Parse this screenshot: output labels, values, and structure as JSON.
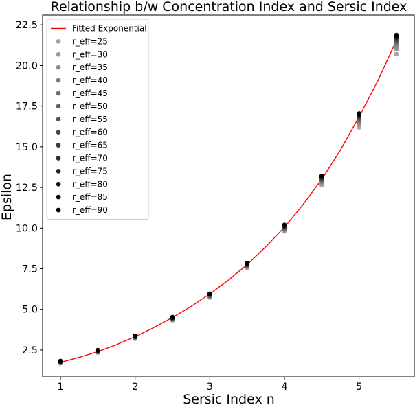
{
  "chart_data": {
    "type": "scatter",
    "title": "Relationship b/w Concentration Index and Sersic Index",
    "xlabel": "Sersic Index n",
    "ylabel": "Epsilon",
    "xlim": [
      0.76,
      5.74
    ],
    "ylim": [
      0.85,
      23.1
    ],
    "xticks": [
      1,
      2,
      3,
      4,
      5
    ],
    "xtick_labels": [
      "1",
      "2",
      "3",
      "4",
      "5"
    ],
    "yticks": [
      2.5,
      5.0,
      7.5,
      10.0,
      12.5,
      15.0,
      17.5,
      20.0,
      22.5
    ],
    "ytick_labels": [
      "2.5",
      "5.0",
      "7.5",
      "10.0",
      "12.5",
      "15.0",
      "17.5",
      "20.0",
      "22.5"
    ],
    "grid": false,
    "legend_position": "top-left",
    "x": [
      1,
      1.5,
      2,
      2.5,
      3,
      3.5,
      4,
      4.5,
      5,
      5.5
    ],
    "fit_line": {
      "name": "Fitted Exponential",
      "color": "#ff0000",
      "x": [
        1,
        1.25,
        1.5,
        1.75,
        2,
        2.25,
        2.5,
        2.75,
        3,
        3.25,
        3.5,
        3.75,
        4,
        4.25,
        4.5,
        4.75,
        5,
        5.25,
        5.5
      ],
      "y": [
        1.74,
        2.05,
        2.4,
        2.83,
        3.32,
        3.88,
        4.5,
        5.18,
        5.95,
        6.8,
        7.75,
        8.85,
        10.05,
        11.45,
        13.0,
        14.8,
        16.85,
        19.05,
        21.55
      ]
    },
    "series": [
      {
        "name": "r_eff=25",
        "color": "#a6a6a6",
        "values": [
          1.68,
          2.34,
          3.2,
          4.33,
          5.72,
          7.56,
          9.8,
          12.65,
          16.2,
          20.7
        ]
      },
      {
        "name": "r_eff=30",
        "color": "#9a9a9a",
        "values": [
          1.7,
          2.36,
          3.22,
          4.36,
          5.76,
          7.6,
          9.86,
          12.75,
          16.35,
          21.0
        ]
      },
      {
        "name": "r_eff=35",
        "color": "#8c8c8c",
        "values": [
          1.71,
          2.37,
          3.24,
          4.38,
          5.79,
          7.63,
          9.9,
          12.82,
          16.46,
          21.15
        ]
      },
      {
        "name": "r_eff=40",
        "color": "#7e7e7e",
        "values": [
          1.72,
          2.39,
          3.26,
          4.4,
          5.82,
          7.66,
          9.94,
          12.88,
          16.56,
          21.3
        ]
      },
      {
        "name": "r_eff=45",
        "color": "#707070",
        "values": [
          1.73,
          2.4,
          3.27,
          4.42,
          5.84,
          7.69,
          9.98,
          12.93,
          16.64,
          21.4
        ]
      },
      {
        "name": "r_eff=50",
        "color": "#626262",
        "values": [
          1.74,
          2.41,
          3.29,
          4.44,
          5.86,
          7.71,
          10.01,
          12.98,
          16.71,
          21.48
        ]
      },
      {
        "name": "r_eff=55",
        "color": "#545454",
        "values": [
          1.75,
          2.42,
          3.3,
          4.45,
          5.88,
          7.73,
          10.04,
          13.02,
          16.77,
          21.55
        ]
      },
      {
        "name": "r_eff=60",
        "color": "#474747",
        "values": [
          1.76,
          2.43,
          3.31,
          4.46,
          5.9,
          7.75,
          10.07,
          13.06,
          16.83,
          21.61
        ]
      },
      {
        "name": "r_eff=65",
        "color": "#3a3a3a",
        "values": [
          1.77,
          2.44,
          3.32,
          4.47,
          5.91,
          7.77,
          10.09,
          13.09,
          16.87,
          21.66
        ]
      },
      {
        "name": "r_eff=70",
        "color": "#2e2e2e",
        "values": [
          1.78,
          2.45,
          3.33,
          4.48,
          5.92,
          7.78,
          10.11,
          13.12,
          16.91,
          21.71
        ]
      },
      {
        "name": "r_eff=75",
        "color": "#222222",
        "values": [
          1.79,
          2.46,
          3.34,
          4.49,
          5.93,
          7.8,
          10.13,
          13.15,
          16.95,
          21.75
        ]
      },
      {
        "name": "r_eff=80",
        "color": "#161616",
        "values": [
          1.8,
          2.47,
          3.35,
          4.5,
          5.94,
          7.81,
          10.15,
          13.17,
          16.98,
          21.79
        ]
      },
      {
        "name": "r_eff=85",
        "color": "#0a0a0a",
        "values": [
          1.81,
          2.48,
          3.36,
          4.51,
          5.95,
          7.82,
          10.17,
          13.19,
          17.01,
          21.83
        ]
      },
      {
        "name": "r_eff=90",
        "color": "#000000",
        "values": [
          1.82,
          2.49,
          3.37,
          4.52,
          5.96,
          7.83,
          10.19,
          13.21,
          17.04,
          21.87
        ]
      }
    ]
  }
}
